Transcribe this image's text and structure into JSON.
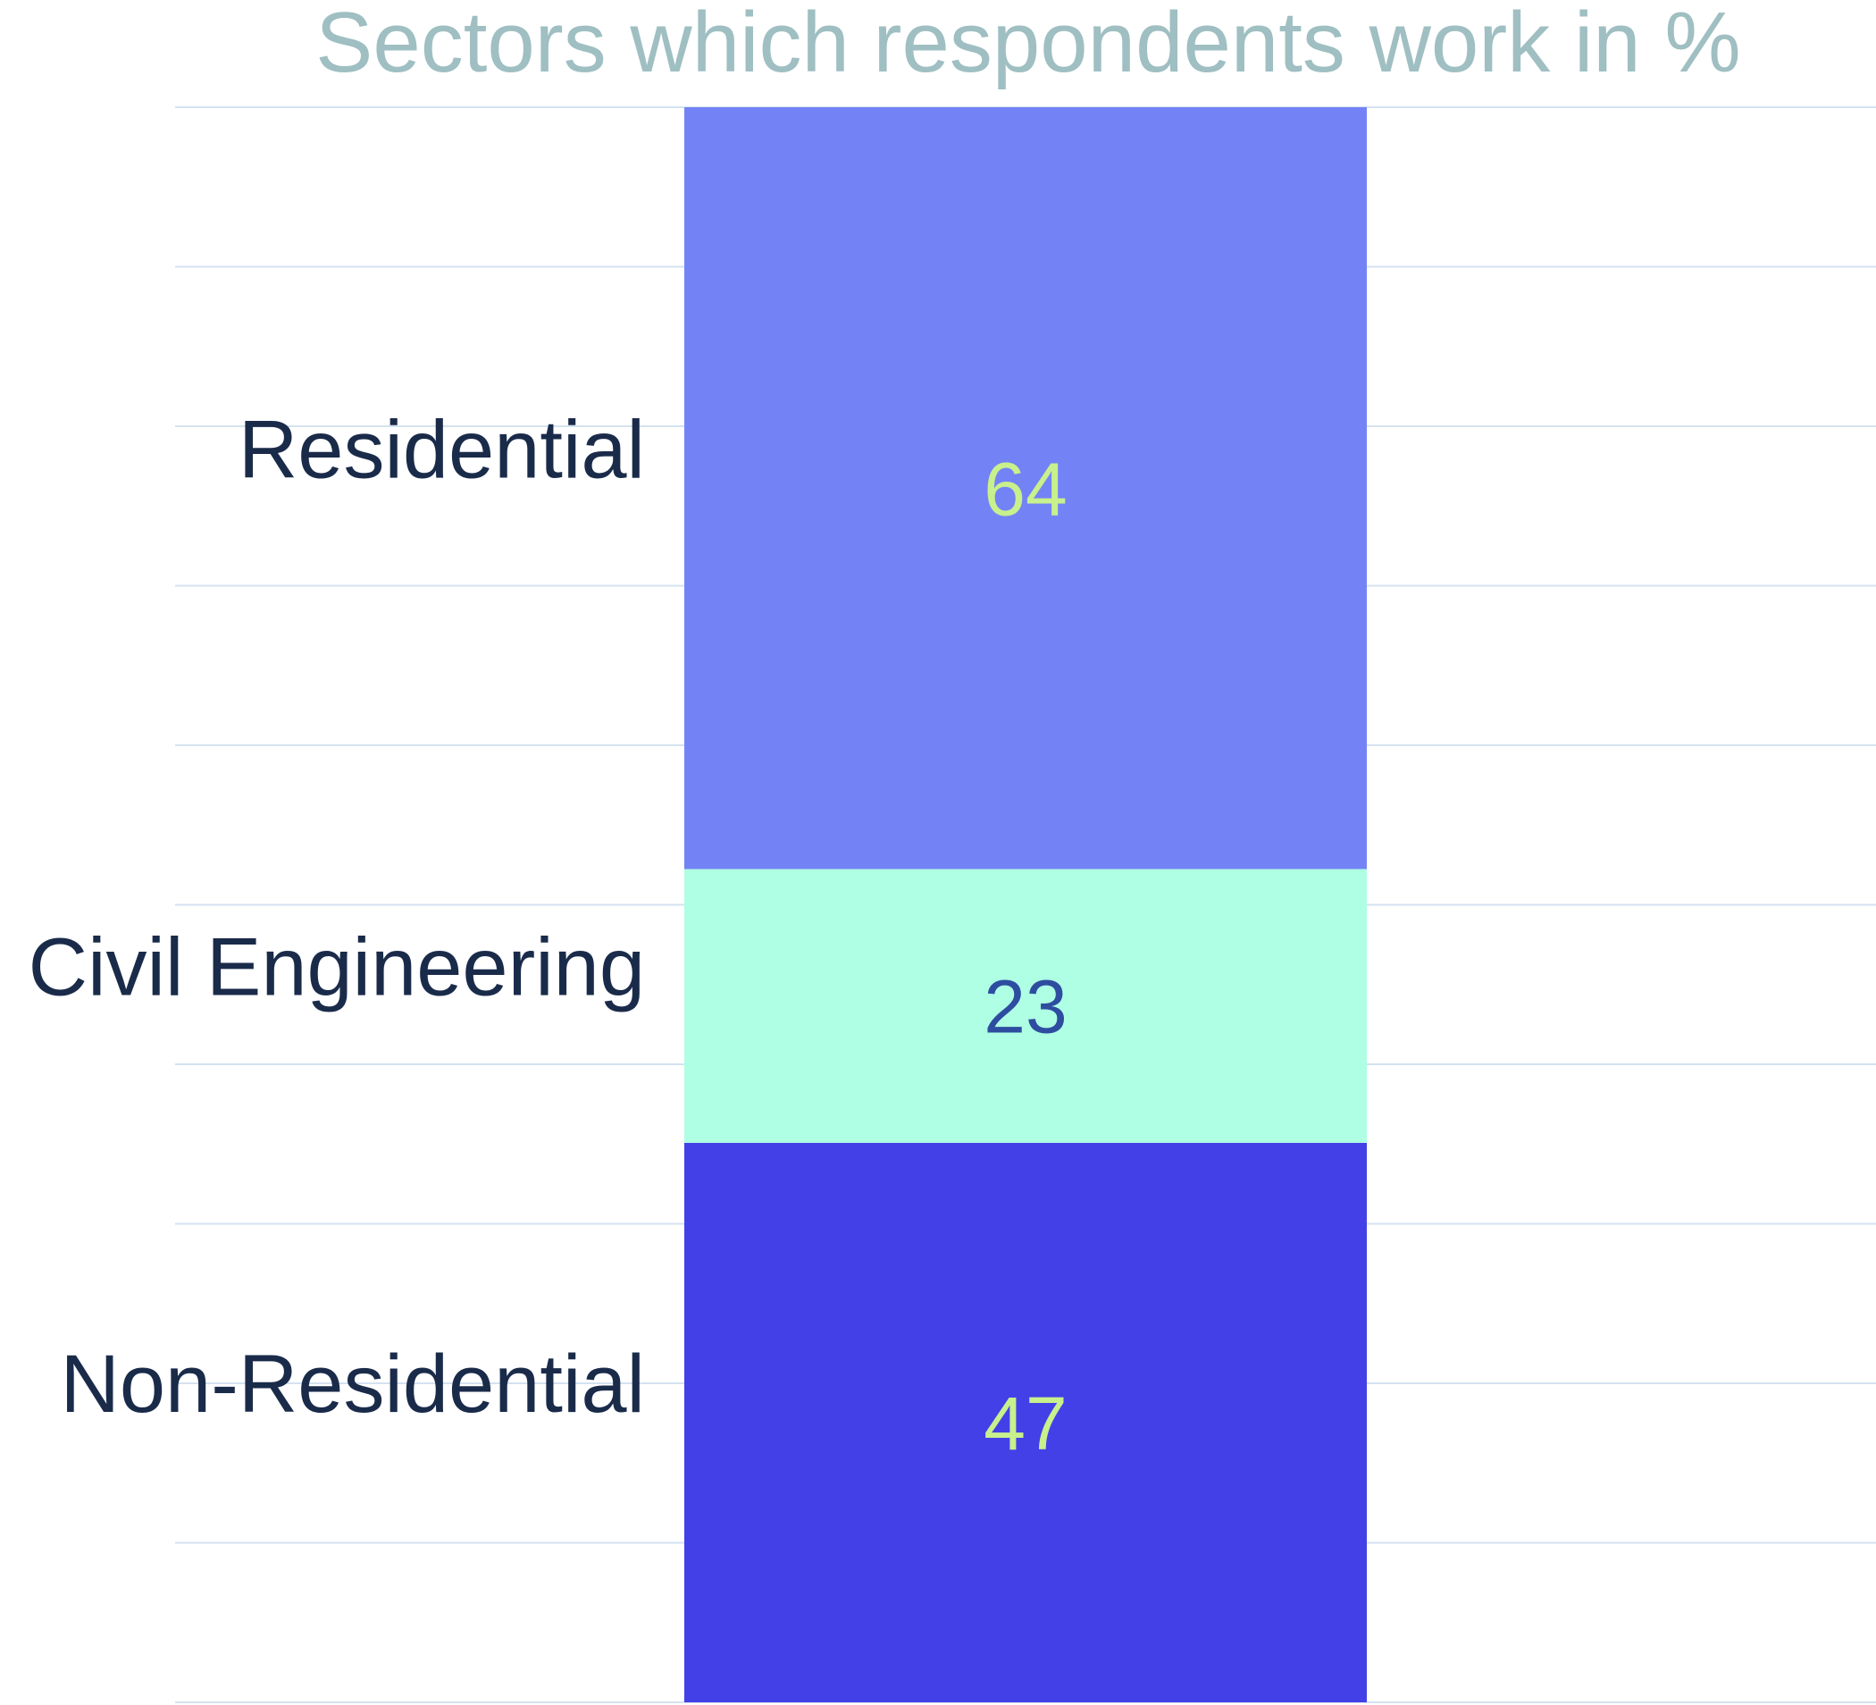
{
  "chart_data": {
    "type": "bar",
    "stacked": true,
    "orientation": "vertical",
    "title": "Sectors which respondents work in %",
    "segments": [
      {
        "name": "Non-Residential",
        "value": 47,
        "color": "#4340E8",
        "label_color": "#C8F08C"
      },
      {
        "name": "Civil Engineering",
        "value": 23,
        "color": "#AEFFE3",
        "label_color": "#2E4DA0"
      },
      {
        "name": "Residential",
        "value": 64,
        "color": "#7383F5",
        "label_color": "#C8F08C"
      }
    ],
    "ylim": [
      0,
      134
    ],
    "grid": true,
    "grid_color": "#D4E2F0",
    "title_color": "#9FBFC2",
    "category_label_color": "#1A2B4A"
  }
}
